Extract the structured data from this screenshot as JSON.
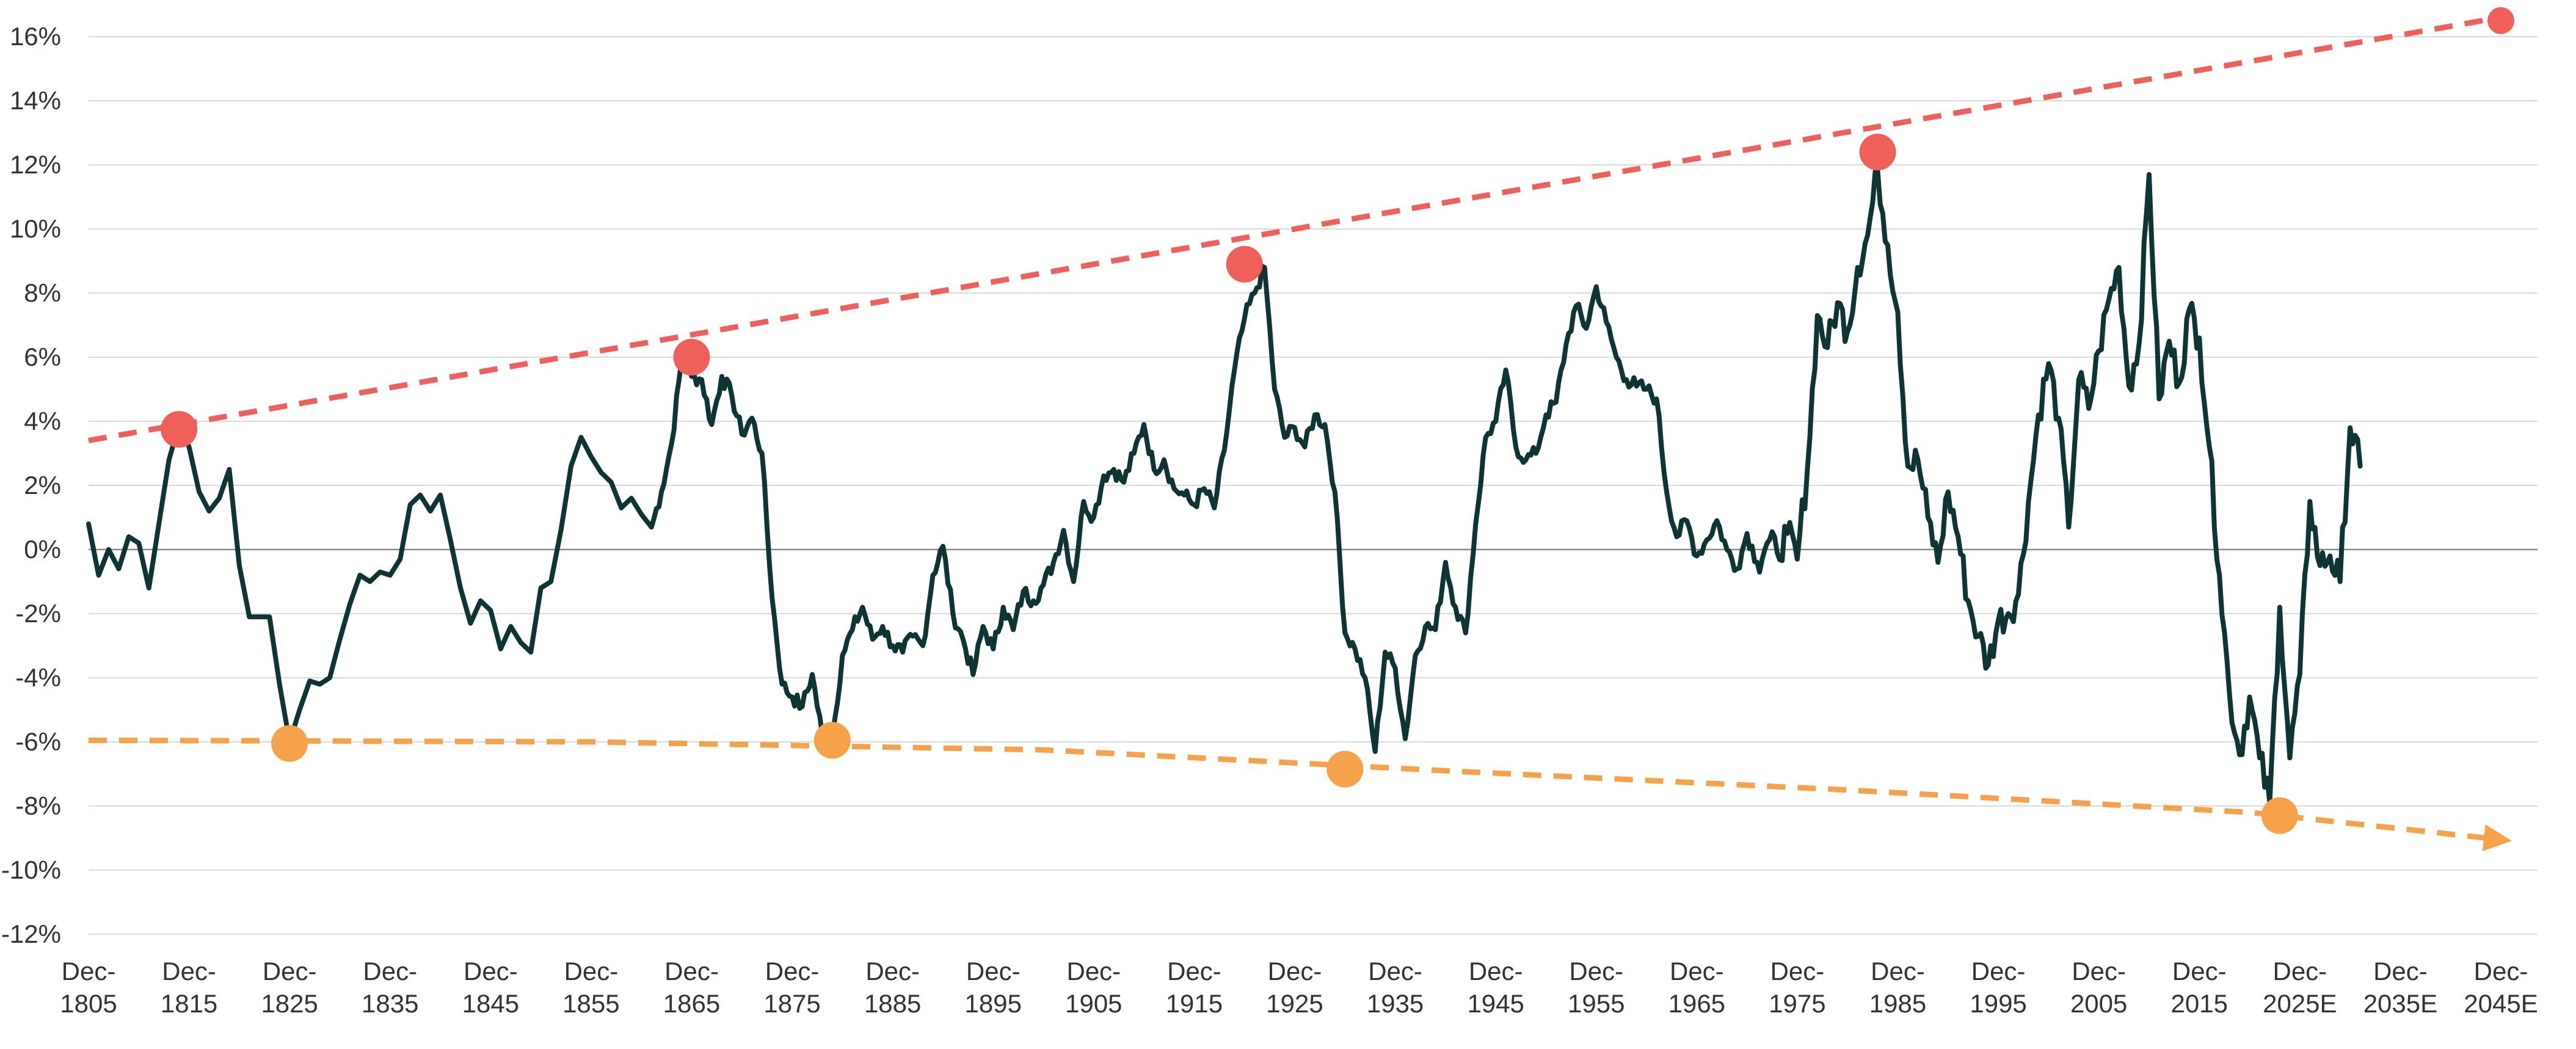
{
  "chart_data": {
    "type": "line",
    "title": "",
    "xlabel": "",
    "ylabel": "",
    "ylim": [
      -12,
      16
    ],
    "xlim": [
      1805,
      2045
    ],
    "y_tick_labels": [
      "16%",
      "14%",
      "12%",
      "10%",
      "8%",
      "6%",
      "4%",
      "2%",
      "0%",
      "-2%",
      "-4%",
      "-6%",
      "-8%",
      "-10%",
      "-12%"
    ],
    "y_tick_values": [
      16,
      14,
      12,
      10,
      8,
      6,
      4,
      2,
      0,
      -2,
      -4,
      -6,
      -8,
      -10,
      -12
    ],
    "x_ticks": [
      {
        "year": 1805,
        "l1": "Dec-",
        "l2": "1805"
      },
      {
        "year": 1815,
        "l1": "Dec-",
        "l2": "1815"
      },
      {
        "year": 1825,
        "l1": "Dec-",
        "l2": "1825"
      },
      {
        "year": 1835,
        "l1": "Dec-",
        "l2": "1835"
      },
      {
        "year": 1845,
        "l1": "Dec-",
        "l2": "1845"
      },
      {
        "year": 1855,
        "l1": "Dec-",
        "l2": "1855"
      },
      {
        "year": 1865,
        "l1": "Dec-",
        "l2": "1865"
      },
      {
        "year": 1875,
        "l1": "Dec-",
        "l2": "1875"
      },
      {
        "year": 1885,
        "l1": "Dec-",
        "l2": "1885"
      },
      {
        "year": 1895,
        "l1": "Dec-",
        "l2": "1895"
      },
      {
        "year": 1905,
        "l1": "Dec-",
        "l2": "1905"
      },
      {
        "year": 1915,
        "l1": "Dec-",
        "l2": "1915"
      },
      {
        "year": 1925,
        "l1": "Dec-",
        "l2": "1925"
      },
      {
        "year": 1935,
        "l1": "Dec-",
        "l2": "1935"
      },
      {
        "year": 1945,
        "l1": "Dec-",
        "l2": "1945"
      },
      {
        "year": 1955,
        "l1": "Dec-",
        "l2": "1955"
      },
      {
        "year": 1965,
        "l1": "Dec-",
        "l2": "1965"
      },
      {
        "year": 1975,
        "l1": "Dec-",
        "l2": "1975"
      },
      {
        "year": 1985,
        "l1": "Dec-",
        "l2": "1985"
      },
      {
        "year": 1995,
        "l1": "Dec-",
        "l2": "1995"
      },
      {
        "year": 2005,
        "l1": "Dec-",
        "l2": "2005"
      },
      {
        "year": 2015,
        "l1": "Dec-",
        "l2": "2015"
      },
      {
        "year": 2025,
        "l1": "Dec-",
        "l2": "2025E"
      },
      {
        "year": 2035,
        "l1": "Dec-",
        "l2": "2035E"
      },
      {
        "year": 2045,
        "l1": "Dec-",
        "l2": "2045E"
      }
    ],
    "grid": true,
    "series": [
      {
        "color": "#0f3434",
        "points": [
          [
            1805,
            0.8
          ],
          [
            1806,
            -0.8
          ],
          [
            1807,
            0
          ],
          [
            1808,
            -0.6
          ],
          [
            1809,
            0.4
          ],
          [
            1810,
            0.2
          ],
          [
            1811,
            -1.2
          ],
          [
            1812,
            0.8
          ],
          [
            1813,
            2.8
          ],
          [
            1814,
            3.9
          ],
          [
            1815,
            3.2
          ],
          [
            1816,
            1.8
          ],
          [
            1817,
            1.2
          ],
          [
            1818,
            1.6
          ],
          [
            1819,
            2.5
          ],
          [
            1820,
            -0.5
          ],
          [
            1821,
            -2.1
          ],
          [
            1822,
            -2.1
          ],
          [
            1823,
            -2.1
          ],
          [
            1824,
            -4.2
          ],
          [
            1825,
            -6.0
          ],
          [
            1826,
            -5.0
          ],
          [
            1827,
            -4.1
          ],
          [
            1828,
            -4.2
          ],
          [
            1829,
            -4.0
          ],
          [
            1830,
            -2.8
          ],
          [
            1831,
            -1.7
          ],
          [
            1832,
            -0.8
          ],
          [
            1833,
            -1.0
          ],
          [
            1834,
            -0.7
          ],
          [
            1835,
            -0.8
          ],
          [
            1836,
            -0.3
          ],
          [
            1837,
            1.4
          ],
          [
            1838,
            1.7
          ],
          [
            1839,
            1.2
          ],
          [
            1840,
            1.7
          ],
          [
            1841,
            0.3
          ],
          [
            1842,
            -1.2
          ],
          [
            1843,
            -2.3
          ],
          [
            1844,
            -1.6
          ],
          [
            1845,
            -1.9
          ],
          [
            1846,
            -3.1
          ],
          [
            1847,
            -2.4
          ],
          [
            1848,
            -2.9
          ],
          [
            1849,
            -3.2
          ],
          [
            1850,
            -1.2
          ],
          [
            1851,
            -1.0
          ],
          [
            1852,
            0.6
          ],
          [
            1853,
            2.6
          ],
          [
            1854,
            3.5
          ],
          [
            1855,
            2.9
          ],
          [
            1856,
            2.4
          ],
          [
            1857,
            2.1
          ],
          [
            1858,
            1.3
          ],
          [
            1859,
            1.6
          ],
          [
            1860,
            1.1
          ],
          [
            1861,
            0.7
          ],
          [
            1862,
            1.8
          ],
          [
            1863,
            3.3
          ],
          [
            1864,
            5.9
          ],
          [
            1865,
            5.4
          ],
          [
            1866,
            5.3
          ],
          [
            1867,
            3.9
          ],
          [
            1868,
            5.4
          ],
          [
            1869,
            4.8
          ],
          [
            1870,
            3.6
          ],
          [
            1871,
            4.1
          ],
          [
            1872,
            3.0
          ],
          [
            1873,
            -1.5
          ],
          [
            1874,
            -4.2
          ],
          [
            1875,
            -4.6
          ],
          [
            1876,
            -4.9
          ],
          [
            1877,
            -3.9
          ],
          [
            1878,
            -5.8
          ],
          [
            1879,
            -5.9
          ],
          [
            1880,
            -3.3
          ],
          [
            1881,
            -2.5
          ],
          [
            1882,
            -1.8
          ],
          [
            1883,
            -2.8
          ],
          [
            1884,
            -2.4
          ],
          [
            1885,
            -3.0
          ],
          [
            1886,
            -3.2
          ],
          [
            1887,
            -2.7
          ],
          [
            1888,
            -3.0
          ],
          [
            1889,
            -0.8
          ],
          [
            1890,
            0.1
          ],
          [
            1891,
            -2.0
          ],
          [
            1892,
            -2.8
          ],
          [
            1893,
            -3.9
          ],
          [
            1894,
            -2.4
          ],
          [
            1895,
            -3.1
          ],
          [
            1896,
            -1.8
          ],
          [
            1897,
            -2.5
          ],
          [
            1898,
            -1.3
          ],
          [
            1899,
            -1.6
          ],
          [
            1900,
            -1.1
          ],
          [
            1901,
            -0.4
          ],
          [
            1902,
            0.6
          ],
          [
            1903,
            -1.0
          ],
          [
            1904,
            1.5
          ],
          [
            1905,
            1.0
          ],
          [
            1906,
            2.3
          ],
          [
            1907,
            2.5
          ],
          [
            1908,
            2.1
          ],
          [
            1909,
            3.0
          ],
          [
            1910,
            3.9
          ],
          [
            1911,
            2.5
          ],
          [
            1912,
            2.8
          ],
          [
            1913,
            1.9
          ],
          [
            1914,
            1.7
          ],
          [
            1915,
            1.4
          ],
          [
            1916,
            1.9
          ],
          [
            1917,
            1.3
          ],
          [
            1918,
            3.1
          ],
          [
            1919,
            5.6
          ],
          [
            1920,
            7.2
          ],
          [
            1921,
            8.0
          ],
          [
            1922,
            8.8
          ],
          [
            1923,
            5.0
          ],
          [
            1924,
            3.5
          ],
          [
            1925,
            3.8
          ],
          [
            1926,
            3.2
          ],
          [
            1927,
            4.2
          ],
          [
            1928,
            3.9
          ],
          [
            1929,
            1.8
          ],
          [
            1930,
            -2.6
          ],
          [
            1931,
            -3.1
          ],
          [
            1932,
            -4.0
          ],
          [
            1933,
            -6.3
          ],
          [
            1934,
            -3.2
          ],
          [
            1935,
            -3.7
          ],
          [
            1936,
            -5.9
          ],
          [
            1937,
            -3.3
          ],
          [
            1938,
            -2.4
          ],
          [
            1939,
            -2.5
          ],
          [
            1940,
            -0.4
          ],
          [
            1941,
            -1.8
          ],
          [
            1942,
            -2.6
          ],
          [
            1943,
            0.8
          ],
          [
            1944,
            3.5
          ],
          [
            1945,
            4.0
          ],
          [
            1946,
            5.6
          ],
          [
            1947,
            3.2
          ],
          [
            1948,
            2.8
          ],
          [
            1949,
            3.0
          ],
          [
            1950,
            4.2
          ],
          [
            1951,
            4.6
          ],
          [
            1952,
            6.4
          ],
          [
            1953,
            7.6
          ],
          [
            1954,
            6.9
          ],
          [
            1955,
            8.2
          ],
          [
            1956,
            7.1
          ],
          [
            1957,
            6.0
          ],
          [
            1958,
            5.3
          ],
          [
            1959,
            5.1
          ],
          [
            1960,
            5.0
          ],
          [
            1961,
            4.7
          ],
          [
            1962,
            1.8
          ],
          [
            1963,
            0.4
          ],
          [
            1964,
            0.9
          ],
          [
            1965,
            -0.2
          ],
          [
            1966,
            0.3
          ],
          [
            1967,
            0.9
          ],
          [
            1968,
            0.0
          ],
          [
            1969,
            -0.6
          ],
          [
            1970,
            0.5
          ],
          [
            1971,
            -0.4
          ],
          [
            1972,
            0.2
          ],
          [
            1973,
            -0.1
          ],
          [
            1974,
            0.5
          ],
          [
            1975,
            -0.3
          ],
          [
            1976,
            2.5
          ],
          [
            1977,
            7.3
          ],
          [
            1978,
            6.3
          ],
          [
            1979,
            7.7
          ],
          [
            1980,
            6.8
          ],
          [
            1981,
            8.8
          ],
          [
            1982,
            9.8
          ],
          [
            1983,
            11.8
          ],
          [
            1984,
            9.5
          ],
          [
            1985,
            7.4
          ],
          [
            1986,
            2.6
          ],
          [
            1987,
            2.8
          ],
          [
            1988,
            1.0
          ],
          [
            1989,
            -0.4
          ],
          [
            1990,
            1.8
          ],
          [
            1991,
            0.4
          ],
          [
            1992,
            -1.6
          ],
          [
            1993,
            -2.7
          ],
          [
            1994,
            -3.6
          ],
          [
            1995,
            -2.2
          ],
          [
            1996,
            -2.0
          ],
          [
            1997,
            -1.4
          ],
          [
            1998,
            1.5
          ],
          [
            1999,
            4.2
          ],
          [
            2000,
            5.8
          ],
          [
            2001,
            4.1
          ],
          [
            2002,
            0.7
          ],
          [
            2003,
            5.3
          ],
          [
            2004,
            4.4
          ],
          [
            2005,
            6.2
          ],
          [
            2006,
            7.8
          ],
          [
            2007,
            8.8
          ],
          [
            2008,
            5.1
          ],
          [
            2009,
            6.4
          ],
          [
            2010,
            11.7
          ],
          [
            2011,
            4.7
          ],
          [
            2012,
            6.5
          ],
          [
            2013,
            5.2
          ],
          [
            2014,
            7.5
          ],
          [
            2015,
            6.6
          ],
          [
            2016,
            3.2
          ],
          [
            2017,
            -0.8
          ],
          [
            2018,
            -4.5
          ],
          [
            2019,
            -6.4
          ],
          [
            2020,
            -4.6
          ],
          [
            2021,
            -6.5
          ],
          [
            2022,
            -7.9
          ],
          [
            2023,
            -1.8
          ],
          [
            2024,
            -6.5
          ],
          [
            2025,
            -3.9
          ],
          [
            2026,
            1.5
          ],
          [
            2027,
            -0.5
          ],
          [
            2028,
            -0.2
          ],
          [
            2029,
            -1.0
          ],
          [
            2030,
            3.8
          ],
          [
            2031,
            2.6
          ]
        ]
      }
    ],
    "trendlines": [
      {
        "color": "#f0605a",
        "from": [
          1805,
          3.4
        ],
        "to": [
          2045,
          16.6
        ],
        "arrow": false,
        "markers": [
          [
            1814,
            3.75
          ],
          [
            1865,
            6.0
          ],
          [
            1920,
            8.9
          ],
          [
            1983,
            12.4
          ],
          [
            2045,
            16.5
          ]
        ]
      },
      {
        "color": "#f5a24b",
        "from": [
          1805,
          -5.95
        ],
        "to": [
          2045,
          -9.05
        ],
        "arrow": true,
        "curve": [
          [
            1805,
            -5.95
          ],
          [
            1855,
            -6.0
          ],
          [
            1900,
            -6.25
          ],
          [
            1940,
            -6.9
          ],
          [
            1980,
            -7.5
          ],
          [
            2020,
            -8.2
          ],
          [
            2045,
            -9.05
          ]
        ],
        "markers": [
          [
            1825,
            -6.05
          ],
          [
            1879,
            -5.95
          ],
          [
            1930,
            -6.85
          ],
          [
            2023,
            -8.3
          ]
        ]
      }
    ]
  }
}
